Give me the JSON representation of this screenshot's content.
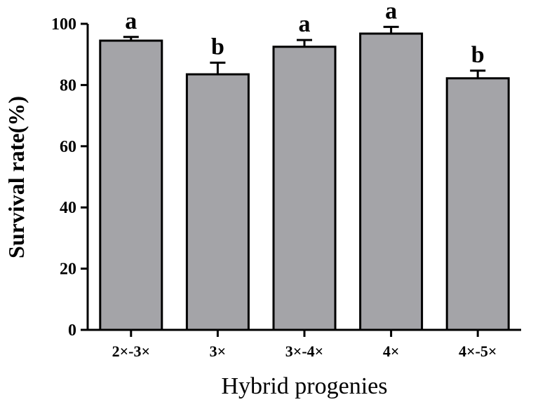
{
  "chart_data": {
    "type": "bar",
    "categories": [
      "2×-3×",
      "3×",
      "3×-4×",
      "4×",
      "4×-5×"
    ],
    "values": [
      94.5,
      83.5,
      92.5,
      96.8,
      82.2
    ],
    "errors": [
      1.2,
      3.8,
      2.2,
      2.2,
      2.5
    ],
    "significance": [
      "a",
      "b",
      "a",
      "a",
      "b"
    ],
    "xlabel": "Hybrid progenies",
    "ylabel": "Survival rate(%)",
    "ylim": [
      0,
      100
    ],
    "yticks": [
      0,
      20,
      40,
      60,
      80,
      100
    ],
    "grid": false,
    "colors": {
      "bar": "#a4a4a8",
      "axis": "#000000"
    }
  }
}
